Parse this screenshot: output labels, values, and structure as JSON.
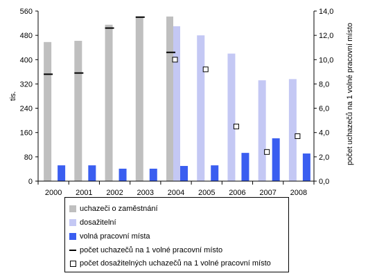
{
  "chart_data": {
    "type": "bar",
    "categories": [
      "2000",
      "2001",
      "2002",
      "2003",
      "2004",
      "2005",
      "2006",
      "2007",
      "2008"
    ],
    "series": [
      {
        "name": "uchazeči o zaměstnání",
        "axis": "left",
        "kind": "bar",
        "color": "#bfbfbf",
        "values": [
          458,
          462,
          515,
          542,
          542,
          null,
          null,
          null,
          null
        ]
      },
      {
        "name": "dosažitelní",
        "axis": "left",
        "kind": "bar",
        "color": "#c4c8f4",
        "values": [
          null,
          null,
          null,
          null,
          510,
          480,
          420,
          332,
          336
        ]
      },
      {
        "name": "volná pracovní místa",
        "axis": "left",
        "kind": "bar",
        "color": "#3a5ef0",
        "values": [
          52,
          52,
          41,
          41,
          50,
          52,
          93,
          141,
          91
        ]
      },
      {
        "name": "počet uchazečů na 1 volné pracovní místo",
        "axis": "right",
        "kind": "dash",
        "color": "#000000",
        "values": [
          8.8,
          8.9,
          12.6,
          13.5,
          10.6,
          null,
          null,
          null,
          null
        ]
      },
      {
        "name": "počet dosažitelných uchazečů na 1 volné pracovní místo",
        "axis": "right",
        "kind": "square",
        "color": "#ffffff",
        "values": [
          null,
          null,
          null,
          null,
          10.0,
          9.2,
          4.5,
          2.4,
          3.7
        ]
      }
    ],
    "ylabel": "tis.",
    "ylabel_right": "počet uchazečů na 1 volné pracovní místo",
    "ylim": [
      0,
      560
    ],
    "yticks": [
      "0",
      "80",
      "160",
      "240",
      "320",
      "400",
      "480",
      "560"
    ],
    "ylim_right": [
      0,
      14
    ],
    "yticks_right": [
      "0,0",
      "2,0",
      "4,0",
      "6,0",
      "8,0",
      "10,0",
      "12,0",
      "14,0"
    ],
    "grid": false,
    "legend_placement": "bottom"
  }
}
